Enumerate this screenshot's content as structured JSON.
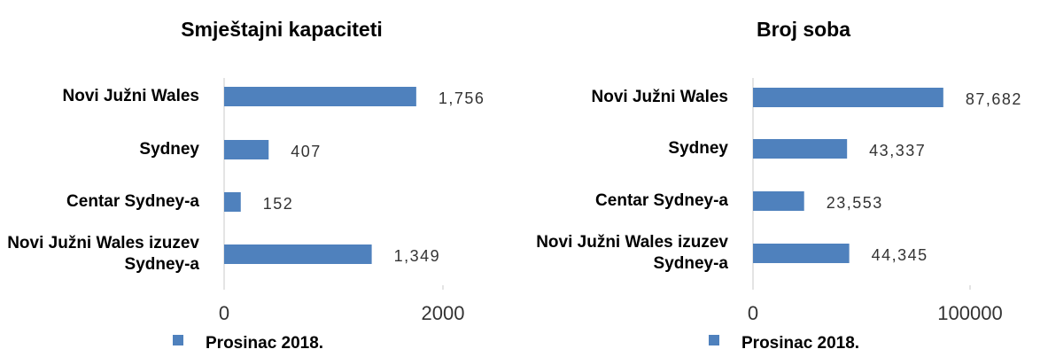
{
  "chart_data": [
    {
      "type": "bar",
      "orientation": "horizontal",
      "title": "Smještajni kapaciteti",
      "categories": [
        "Novi Južni Wales",
        "Sydney",
        "Centar Sydney-a",
        "Novi Južni Wales izuzev Sydney-a"
      ],
      "series": [
        {
          "name": "Prosinac 2018.",
          "color": "#4f81bd",
          "values": [
            1756,
            407,
            152,
            1349
          ],
          "value_labels": [
            "1,756",
            "407",
            "152",
            "1,349"
          ]
        }
      ],
      "xlim": [
        0,
        2000
      ],
      "xticks": [
        0,
        2000
      ]
    },
    {
      "type": "bar",
      "orientation": "horizontal",
      "title": "Broj soba",
      "categories": [
        "Novi Južni Wales",
        "Sydney",
        "Centar Sydney-a",
        "Novi Južni Wales izuzev Sydney-a"
      ],
      "series": [
        {
          "name": "Prosinac 2018.",
          "color": "#4f81bd",
          "values": [
            87682,
            43337,
            23553,
            44345
          ],
          "value_labels": [
            "87,682",
            "43,337",
            "23,553",
            "44,345"
          ]
        }
      ],
      "xlim": [
        0,
        100000
      ],
      "xticks": [
        0,
        100000
      ]
    }
  ]
}
